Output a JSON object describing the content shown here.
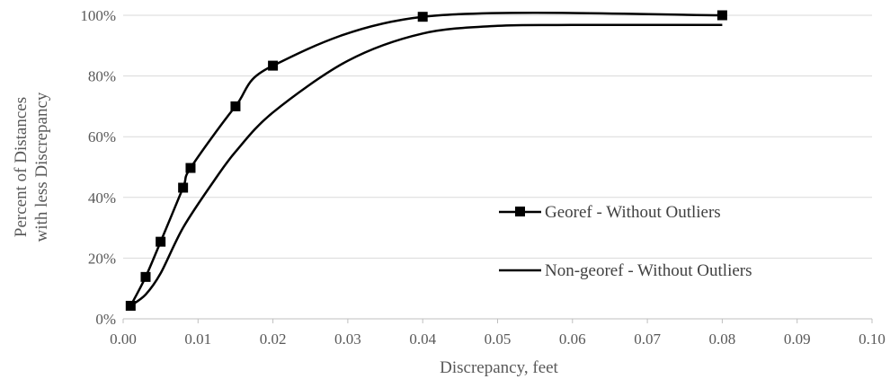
{
  "chart_data": {
    "type": "line",
    "xlabel": "Discrepancy, feet",
    "ylabel_lines": [
      "Percent of Distances",
      "with less Discrepancy"
    ],
    "xlim": [
      0,
      0.1
    ],
    "ylim": [
      0,
      1
    ],
    "x_ticks": [
      "0.00",
      "0.01",
      "0.02",
      "0.03",
      "0.04",
      "0.05",
      "0.06",
      "0.07",
      "0.08",
      "0.09",
      "0.10"
    ],
    "y_ticks": [
      "0%",
      "20%",
      "40%",
      "60%",
      "80%",
      "100%"
    ],
    "grid": "horizontal",
    "legend_position": "right",
    "series": [
      {
        "name": "Georef - Without Outliers",
        "marker": "square",
        "color": "#000000",
        "x": [
          0.001,
          0.003,
          0.005,
          0.008,
          0.009,
          0.015,
          0.02,
          0.04,
          0.08
        ],
        "y": [
          0.043,
          0.138,
          0.254,
          0.432,
          0.497,
          0.7,
          0.834,
          0.995,
          1.0
        ]
      },
      {
        "name": "Non-georef - Without Outliers",
        "marker": "none",
        "color": "#000000",
        "x": [
          0.001,
          0.003,
          0.005,
          0.008,
          0.012,
          0.015,
          0.02,
          0.03,
          0.04,
          0.05,
          0.06,
          0.08
        ],
        "y": [
          0.043,
          0.08,
          0.15,
          0.3,
          0.45,
          0.55,
          0.68,
          0.85,
          0.94,
          0.965,
          0.968,
          0.968
        ]
      }
    ]
  }
}
